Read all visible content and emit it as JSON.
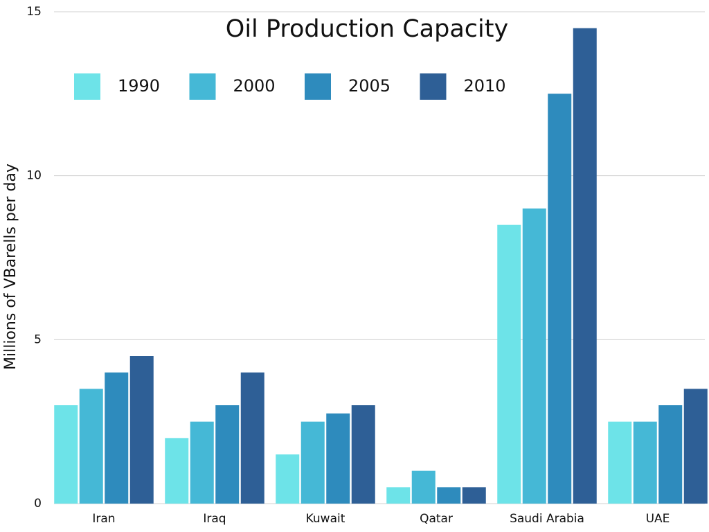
{
  "chart_data": {
    "type": "bar",
    "title": "Oil Production Capacity",
    "y_label": "Millions of VBarells per day",
    "categories": [
      "Iran",
      "Iraq",
      "Kuwait",
      "Qatar",
      "Saudi Arabia",
      "UAE"
    ],
    "series": [
      {
        "name": "1990",
        "color": "#6de3e8",
        "values": [
          3,
          2,
          1.5,
          0.5,
          8.5,
          2.5
        ]
      },
      {
        "name": "2000",
        "color": "#45b8d6",
        "values": [
          3.5,
          2.5,
          2.5,
          1,
          9,
          2.5
        ]
      },
      {
        "name": "2005",
        "color": "#2e8bbd",
        "values": [
          4,
          3,
          2.75,
          0.5,
          12.5,
          3
        ]
      },
      {
        "name": "2010",
        "color": "#2e5f96",
        "values": [
          4.5,
          4,
          3,
          0.5,
          14.5,
          3.5
        ]
      }
    ],
    "ylim": [
      0,
      15
    ],
    "yticks": [
      0,
      5,
      10,
      15
    ],
    "grid": true,
    "legend": "top-left"
  }
}
